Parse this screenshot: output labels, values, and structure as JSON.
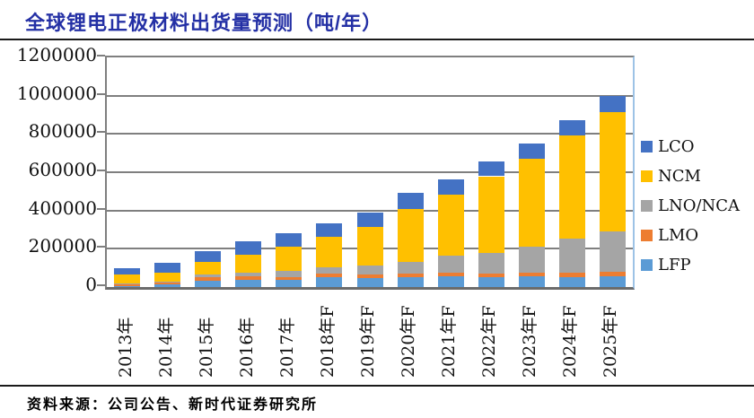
{
  "title": "全球锂电正极材料出货量预测（吨/年）",
  "source_note": "资料来源：公司公告、新时代证券研究所",
  "colors": {
    "title_text": "#2430A5",
    "divider": "#1a1a1a",
    "gridline": "#7F7F7F",
    "axis_line": "#6B6B6B",
    "plot_right_border": "#9DC3E6"
  },
  "chart_data": {
    "type": "bar",
    "stacked": true,
    "title": "全球锂电正极材料出货量预测（吨/年）",
    "unit": "吨/年",
    "categories": [
      "2013年",
      "2014年",
      "2015年",
      "2016年",
      "2017年",
      "2018年F",
      "2019年F",
      "2020年F",
      "2021年F",
      "2022年F",
      "2023年F",
      "2024年F",
      "2025年F"
    ],
    "series": [
      {
        "name": "LCO",
        "color": "#4472C4",
        "values": [
          35000,
          48000,
          55000,
          70000,
          67000,
          72000,
          75000,
          80000,
          80000,
          78000,
          80000,
          82000,
          87000
        ]
      },
      {
        "name": "NCM",
        "color": "#FFC000",
        "values": [
          48000,
          47000,
          65000,
          92000,
          128000,
          162000,
          200000,
          278000,
          317000,
          400000,
          458000,
          536000,
          620000
        ]
      },
      {
        "name": "LNO/NCA",
        "color": "#A5A5A5",
        "values": [
          3000,
          4000,
          18000,
          20000,
          32000,
          32000,
          47000,
          60000,
          90000,
          108000,
          135000,
          180000,
          215000
        ]
      },
      {
        "name": "LMO",
        "color": "#ED7D31",
        "values": [
          10000,
          13000,
          18000,
          18000,
          15000,
          19000,
          19000,
          20000,
          19000,
          20000,
          19000,
          22000,
          22000
        ]
      },
      {
        "name": "LFP",
        "color": "#5B9BD5",
        "values": [
          4000,
          13000,
          32000,
          38000,
          38000,
          50000,
          48000,
          52000,
          55000,
          51000,
          58000,
          52000,
          56000
        ]
      }
    ],
    "totals": [
      100000,
      125000,
      188000,
      238000,
      280000,
      335000,
      389000,
      490000,
      561000,
      657000,
      750000,
      872000,
      1000000
    ],
    "stack_order_bottom_to_top": [
      "LFP",
      "LMO",
      "LNO/NCA",
      "NCM",
      "LCO"
    ],
    "legend_order": [
      "LCO",
      "NCM",
      "LNO/NCA",
      "LMO",
      "LFP"
    ],
    "legend_position": "right",
    "ylim": [
      0,
      1200000
    ],
    "ytick_step": 200000,
    "ytick_labels": [
      "0",
      "200000",
      "400000",
      "600000",
      "800000",
      "1000000",
      "1200000"
    ],
    "gridlines": true
  }
}
